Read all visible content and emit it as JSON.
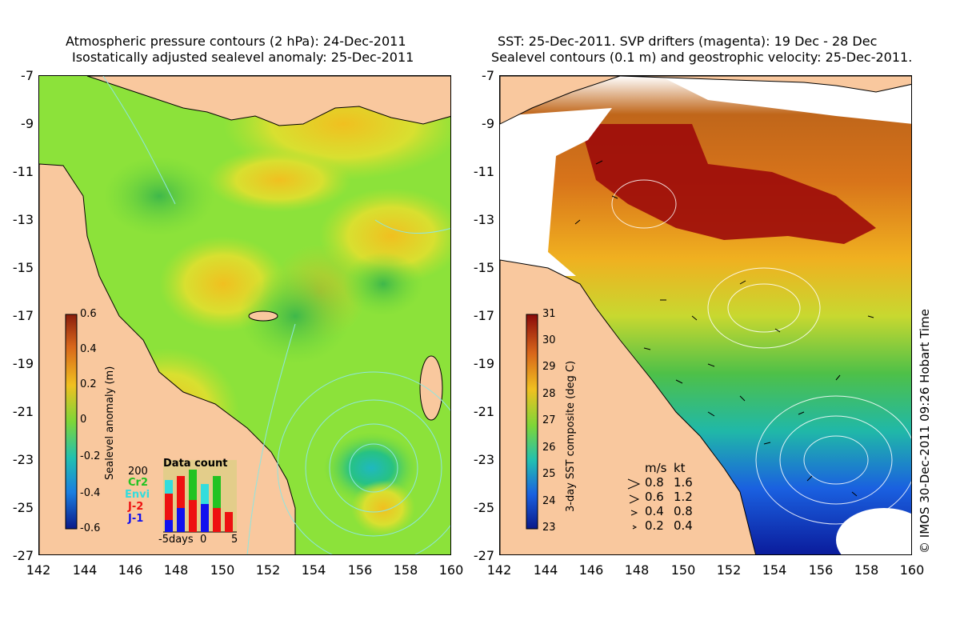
{
  "left": {
    "title_line1": "Atmospheric pressure contours (2 hPa): 24-Dec-2011",
    "title_line2": "Isostatically adjusted sealevel anomaly: 25-Dec-2011",
    "colorbar_label": "Sealevel anomaly (m)",
    "colorbar_ticks": [
      "0.6",
      "0.4",
      "0.2",
      "0",
      "-0.2",
      "-0.4",
      "-0.6"
    ],
    "inset": {
      "title": "Data count",
      "ymax_label": "200",
      "sources": [
        {
          "name": "Cr2",
          "color": "#22c322"
        },
        {
          "name": "Envi",
          "color": "#33dddd"
        },
        {
          "name": "J-2",
          "color": "#ee1111"
        },
        {
          "name": "J-1",
          "color": "#1111ee"
        }
      ],
      "x_labels": [
        "-5days",
        "0",
        "5"
      ]
    }
  },
  "right": {
    "title_line1": "SST: 25-Dec-2011. SVP drifters (magenta): 19 Dec - 28 Dec",
    "title_line2": "Sealevel contours (0.1 m) and geostrophic velocity: 25-Dec-2011.",
    "colorbar_label": "3-day SST composite (deg C)",
    "colorbar_ticks": [
      "31",
      "30",
      "29",
      "28",
      "27",
      "26",
      "25",
      "24",
      "23"
    ],
    "velocity_legend": {
      "header_ms": "m/s",
      "header_kt": "kt",
      "rows": [
        {
          "ms": "0.8",
          "kt": "1.6"
        },
        {
          "ms": "0.6",
          "kt": "1.2"
        },
        {
          "ms": "0.4",
          "kt": "0.8"
        },
        {
          "ms": "0.2",
          "kt": "0.4"
        }
      ]
    }
  },
  "axes": {
    "y_ticks": [
      "-7",
      "-9",
      "-11",
      "-13",
      "-15",
      "-17",
      "-19",
      "-21",
      "-23",
      "-25",
      "-27"
    ],
    "x_ticks": [
      "142",
      "144",
      "146",
      "148",
      "150",
      "152",
      "154",
      "156",
      "158",
      "160"
    ]
  },
  "credit": "© IMOS 30-Dec-2011 09:26 Hobart Time",
  "colors": {
    "land": "#f9c89e",
    "ocean_anomaly_base": "#7fe03a",
    "sst_hot": "#9c0a0a",
    "sst_cold": "#0a2d9c"
  }
}
